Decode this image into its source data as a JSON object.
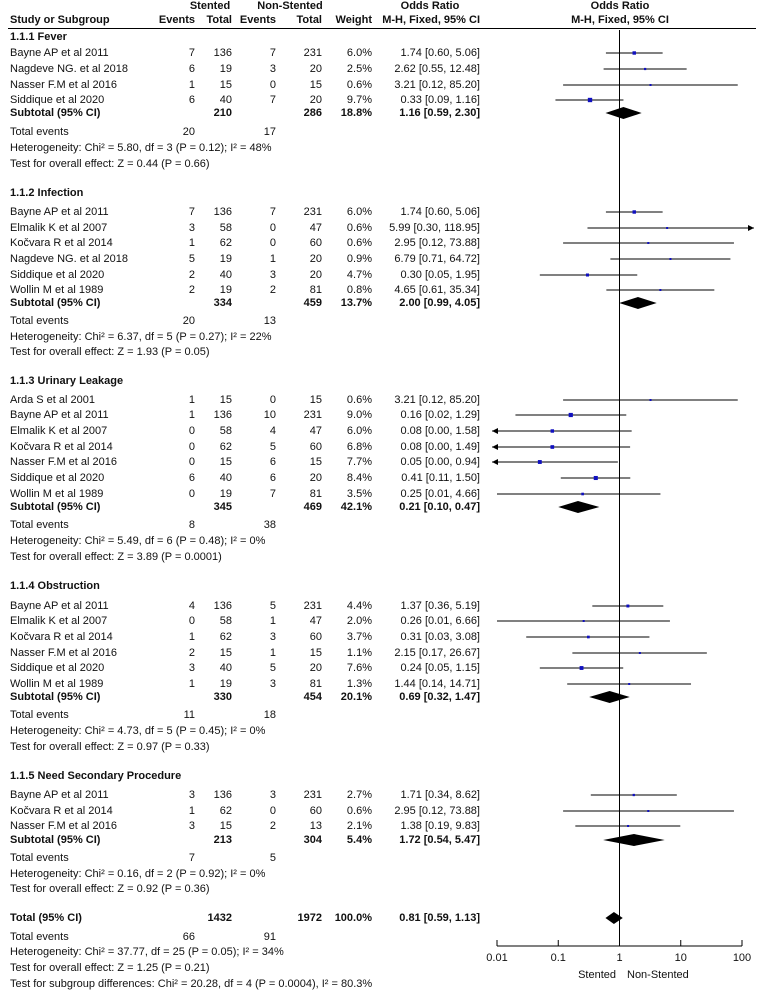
{
  "header": {
    "stented": "Stented",
    "non_stented": "Non-Stented",
    "odds_ratio": "Odds Ratio",
    "odds_ratio_plot": "Odds Ratio",
    "study": "Study or Subgroup",
    "events1": "Events",
    "total1": "Total",
    "events2": "Events",
    "total2": "Total",
    "weight": "Weight",
    "method": "M-H, Fixed, 95% CI",
    "method_plot": "M-H, Fixed, 95% CI"
  },
  "chart_data": {
    "type": "forest",
    "scale": "log",
    "xlim": [
      0.01,
      100
    ],
    "ticks": [
      "0.01",
      "0.1",
      "1",
      "10",
      "100"
    ],
    "tick_values": [
      0.01,
      0.1,
      1,
      10,
      100
    ],
    "left_label": "Stented",
    "right_label": "Non-Stented",
    "groups": [
      {
        "title": "1.1.1 Fever",
        "studies": [
          {
            "name": "Bayne AP et al 2011",
            "e1": "7",
            "n1": "136",
            "e2": "7",
            "n2": "231",
            "w": "6.0%",
            "or": 1.74,
            "lo": 0.6,
            "hi": 5.06,
            "ci": "1.74 [0.60, 5.06]"
          },
          {
            "name": "Nagdeve NG. et al 2018",
            "e1": "6",
            "n1": "19",
            "e2": "3",
            "n2": "20",
            "w": "2.5%",
            "or": 2.62,
            "lo": 0.55,
            "hi": 12.48,
            "ci": "2.62 [0.55, 12.48]"
          },
          {
            "name": "Nasser F.M et al 2016",
            "e1": "1",
            "n1": "15",
            "e2": "0",
            "n2": "15",
            "w": "0.6%",
            "or": 3.21,
            "lo": 0.12,
            "hi": 85.2,
            "ci": "3.21 [0.12, 85.20]"
          },
          {
            "name": "Siddique et al 2020",
            "e1": "6",
            "n1": "40",
            "e2": "7",
            "n2": "20",
            "w": "9.7%",
            "or": 0.33,
            "lo": 0.09,
            "hi": 1.16,
            "ci": "0.33 [0.09, 1.16]"
          }
        ],
        "subtotal": {
          "label": "Subtotal (95% CI)",
          "n1": "210",
          "n2": "286",
          "w": "18.8%",
          "or": 1.16,
          "lo": 0.59,
          "hi": 2.3,
          "ci": "1.16 [0.59, 2.30]"
        },
        "total_events": {
          "label": "Total events",
          "e1": "20",
          "e2": "17"
        },
        "heterogeneity": "Heterogeneity: Chi² = 5.80, df = 3 (P = 0.12); I² = 48%",
        "overall": "Test for overall effect: Z = 0.44 (P = 0.66)"
      },
      {
        "title": "1.1.2 Infection",
        "studies": [
          {
            "name": "Bayne AP et al 2011",
            "e1": "7",
            "n1": "136",
            "e2": "7",
            "n2": "231",
            "w": "6.0%",
            "or": 1.74,
            "lo": 0.6,
            "hi": 5.06,
            "ci": "1.74 [0.60, 5.06]"
          },
          {
            "name": "Elmalik K et al 2007",
            "e1": "3",
            "n1": "58",
            "e2": "0",
            "n2": "47",
            "w": "0.6%",
            "or": 5.99,
            "lo": 0.3,
            "hi": 118.95,
            "ci": "5.99 [0.30, 118.95]"
          },
          {
            "name": "Kočvara R et al 2014",
            "e1": "1",
            "n1": "62",
            "e2": "0",
            "n2": "60",
            "w": "0.6%",
            "or": 2.95,
            "lo": 0.12,
            "hi": 73.88,
            "ci": "2.95 [0.12, 73.88]"
          },
          {
            "name": "Nagdeve NG. et al 2018",
            "e1": "5",
            "n1": "19",
            "e2": "1",
            "n2": "20",
            "w": "0.9%",
            "or": 6.79,
            "lo": 0.71,
            "hi": 64.72,
            "ci": "6.79 [0.71, 64.72]"
          },
          {
            "name": "Siddique et al 2020",
            "e1": "2",
            "n1": "40",
            "e2": "3",
            "n2": "20",
            "w": "4.7%",
            "or": 0.3,
            "lo": 0.05,
            "hi": 1.95,
            "ci": "0.30 [0.05, 1.95]"
          },
          {
            "name": "Wollin M et al 1989",
            "e1": "2",
            "n1": "19",
            "e2": "2",
            "n2": "81",
            "w": "0.8%",
            "or": 4.65,
            "lo": 0.61,
            "hi": 35.34,
            "ci": "4.65 [0.61, 35.34]"
          }
        ],
        "subtotal": {
          "label": "Subtotal (95% CI)",
          "n1": "334",
          "n2": "459",
          "w": "13.7%",
          "or": 2.0,
          "lo": 0.99,
          "hi": 4.05,
          "ci": "2.00 [0.99, 4.05]"
        },
        "total_events": {
          "label": "Total events",
          "e1": "20",
          "e2": "13"
        },
        "heterogeneity": "Heterogeneity: Chi² = 6.37, df = 5 (P = 0.27); I² = 22%",
        "overall": "Test for overall effect: Z = 1.93 (P = 0.05)"
      },
      {
        "title": "1.1.3 Urinary Leakage",
        "studies": [
          {
            "name": "Arda S et al 2001",
            "e1": "1",
            "n1": "15",
            "e2": "0",
            "n2": "15",
            "w": "0.6%",
            "or": 3.21,
            "lo": 0.12,
            "hi": 85.2,
            "ci": "3.21 [0.12, 85.20]"
          },
          {
            "name": "Bayne AP et al 2011",
            "e1": "1",
            "n1": "136",
            "e2": "10",
            "n2": "231",
            "w": "9.0%",
            "or": 0.16,
            "lo": 0.02,
            "hi": 1.29,
            "ci": "0.16 [0.02, 1.29]"
          },
          {
            "name": "Elmalik K et al 2007",
            "e1": "0",
            "n1": "58",
            "e2": "4",
            "n2": "47",
            "w": "6.0%",
            "or": 0.08,
            "lo": 0.0,
            "hi": 1.58,
            "ci": "0.08 [0.00, 1.58]"
          },
          {
            "name": "Kočvara R et al 2014",
            "e1": "0",
            "n1": "62",
            "e2": "5",
            "n2": "60",
            "w": "6.8%",
            "or": 0.08,
            "lo": 0.0,
            "hi": 1.49,
            "ci": "0.08 [0.00, 1.49]"
          },
          {
            "name": "Nasser F.M et al 2016",
            "e1": "0",
            "n1": "15",
            "e2": "6",
            "n2": "15",
            "w": "7.7%",
            "or": 0.05,
            "lo": 0.0,
            "hi": 0.94,
            "ci": "0.05 [0.00, 0.94]"
          },
          {
            "name": "Siddique et al 2020",
            "e1": "6",
            "n1": "40",
            "e2": "6",
            "n2": "20",
            "w": "8.4%",
            "or": 0.41,
            "lo": 0.11,
            "hi": 1.5,
            "ci": "0.41 [0.11, 1.50]"
          },
          {
            "name": "Wollin M et al 1989",
            "e1": "0",
            "n1": "19",
            "e2": "7",
            "n2": "81",
            "w": "3.5%",
            "or": 0.25,
            "lo": 0.01,
            "hi": 4.66,
            "ci": "0.25 [0.01, 4.66]"
          }
        ],
        "subtotal": {
          "label": "Subtotal (95% CI)",
          "n1": "345",
          "n2": "469",
          "w": "42.1%",
          "or": 0.21,
          "lo": 0.1,
          "hi": 0.47,
          "ci": "0.21 [0.10, 0.47]"
        },
        "total_events": {
          "label": "Total events",
          "e1": "8",
          "e2": "38"
        },
        "heterogeneity": "Heterogeneity: Chi² = 5.49, df = 6 (P = 0.48); I² = 0%",
        "overall": "Test for overall effect: Z = 3.89 (P = 0.0001)"
      },
      {
        "title": "1.1.4 Obstruction",
        "studies": [
          {
            "name": "Bayne AP et al 2011",
            "e1": "4",
            "n1": "136",
            "e2": "5",
            "n2": "231",
            "w": "4.4%",
            "or": 1.37,
            "lo": 0.36,
            "hi": 5.19,
            "ci": "1.37 [0.36, 5.19]"
          },
          {
            "name": "Elmalik K et al 2007",
            "e1": "0",
            "n1": "58",
            "e2": "1",
            "n2": "47",
            "w": "2.0%",
            "or": 0.26,
            "lo": 0.01,
            "hi": 6.66,
            "ci": "0.26 [0.01, 6.66]"
          },
          {
            "name": "Kočvara R et al 2014",
            "e1": "1",
            "n1": "62",
            "e2": "3",
            "n2": "60",
            "w": "3.7%",
            "or": 0.31,
            "lo": 0.03,
            "hi": 3.08,
            "ci": "0.31 [0.03, 3.08]"
          },
          {
            "name": "Nasser F.M et al 2016",
            "e1": "2",
            "n1": "15",
            "e2": "1",
            "n2": "15",
            "w": "1.1%",
            "or": 2.15,
            "lo": 0.17,
            "hi": 26.67,
            "ci": "2.15 [0.17, 26.67]"
          },
          {
            "name": "Siddique et al 2020",
            "e1": "3",
            "n1": "40",
            "e2": "5",
            "n2": "20",
            "w": "7.6%",
            "or": 0.24,
            "lo": 0.05,
            "hi": 1.15,
            "ci": "0.24 [0.05, 1.15]"
          },
          {
            "name": "Wollin M et al 1989",
            "e1": "1",
            "n1": "19",
            "e2": "3",
            "n2": "81",
            "w": "1.3%",
            "or": 1.44,
            "lo": 0.14,
            "hi": 14.71,
            "ci": "1.44 [0.14, 14.71]"
          }
        ],
        "subtotal": {
          "label": "Subtotal (95% CI)",
          "n1": "330",
          "n2": "454",
          "w": "20.1%",
          "or": 0.69,
          "lo": 0.32,
          "hi": 1.47,
          "ci": "0.69 [0.32, 1.47]"
        },
        "total_events": {
          "label": "Total events",
          "e1": "11",
          "e2": "18"
        },
        "heterogeneity": "Heterogeneity: Chi² = 4.73, df = 5 (P = 0.45); I² = 0%",
        "overall": "Test for overall effect: Z = 0.97 (P = 0.33)"
      },
      {
        "title": "1.1.5 Need Secondary Procedure",
        "studies": [
          {
            "name": "Bayne AP et al 2011",
            "e1": "3",
            "n1": "136",
            "e2": "3",
            "n2": "231",
            "w": "2.7%",
            "or": 1.71,
            "lo": 0.34,
            "hi": 8.62,
            "ci": "1.71 [0.34, 8.62]"
          },
          {
            "name": "Kočvara R et al 2014",
            "e1": "1",
            "n1": "62",
            "e2": "0",
            "n2": "60",
            "w": "0.6%",
            "or": 2.95,
            "lo": 0.12,
            "hi": 73.88,
            "ci": "2.95 [0.12, 73.88]"
          },
          {
            "name": "Nasser F.M et al 2016",
            "e1": "3",
            "n1": "15",
            "e2": "2",
            "n2": "13",
            "w": "2.1%",
            "or": 1.38,
            "lo": 0.19,
            "hi": 9.83,
            "ci": "1.38 [0.19, 9.83]"
          }
        ],
        "subtotal": {
          "label": "Subtotal (95% CI)",
          "n1": "213",
          "n2": "304",
          "w": "5.4%",
          "or": 1.72,
          "lo": 0.54,
          "hi": 5.47,
          "ci": "1.72 [0.54, 5.47]"
        },
        "total_events": {
          "label": "Total events",
          "e1": "7",
          "e2": "5"
        },
        "heterogeneity": "Heterogeneity: Chi² = 0.16, df = 2 (P = 0.92); I² = 0%",
        "overall": "Test for overall effect: Z = 0.92 (P = 0.36)"
      }
    ],
    "total": {
      "label": "Total (95% CI)",
      "n1": "1432",
      "n2": "1972",
      "w": "100.0%",
      "or": 0.81,
      "lo": 0.59,
      "hi": 1.13,
      "ci": "0.81 [0.59, 1.13]"
    },
    "total_events": {
      "label": "Total events",
      "e1": "66",
      "e2": "91"
    },
    "heterogeneity": "Heterogeneity: Chi² = 37.77, df = 25 (P = 0.05); I² = 34%",
    "overall": "Test for overall effect: Z = 1.25 (P = 0.21)",
    "subgroup_diff": "Test for subgroup differences: Chi² = 20.28, df = 4 (P = 0.0004), I² = 80.3%",
    "colors": {
      "square": "#1010c0",
      "line": "#000000",
      "diamond": "#000000"
    }
  }
}
